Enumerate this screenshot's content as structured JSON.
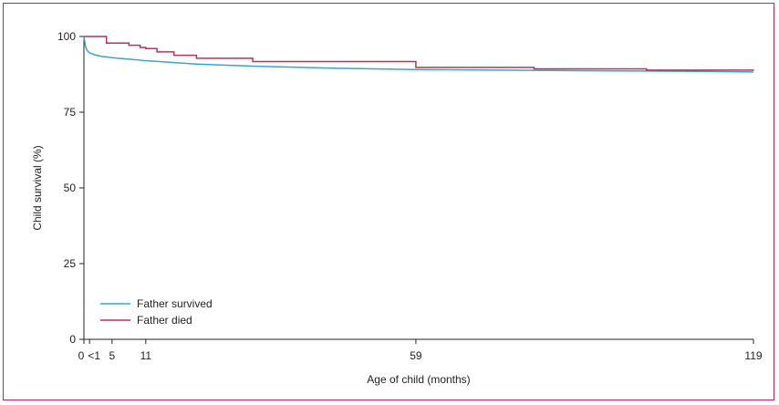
{
  "chart_data": {
    "type": "line",
    "title": "",
    "xlabel": "Age of child (months)",
    "ylabel": "Child survival (%)",
    "xlim": [
      0,
      119
    ],
    "ylim": [
      0,
      100
    ],
    "x_ticks": [
      {
        "value": 0,
        "label": "0"
      },
      {
        "value": 1,
        "label": "<1"
      },
      {
        "value": 5,
        "label": "5"
      },
      {
        "value": 11,
        "label": "11"
      },
      {
        "value": 59,
        "label": "59"
      },
      {
        "value": 119,
        "label": "119"
      }
    ],
    "y_ticks": [
      {
        "value": 0,
        "label": "0"
      },
      {
        "value": 25,
        "label": "25"
      },
      {
        "value": 50,
        "label": "50"
      },
      {
        "value": 75,
        "label": "75"
      },
      {
        "value": 100,
        "label": "100"
      }
    ],
    "grid": false,
    "legend_position": "bottom-left",
    "series": [
      {
        "name": "Father survived",
        "color": "#3aa5c8",
        "step": false,
        "x": [
          0,
          0.3,
          0.6,
          1,
          2,
          3,
          5,
          8,
          11,
          20,
          30,
          45,
          59,
          80,
          100,
          119
        ],
        "y": [
          100,
          96.5,
          95.3,
          94.6,
          93.9,
          93.5,
          93.0,
          92.5,
          92.0,
          90.9,
          90.2,
          89.5,
          89.1,
          88.8,
          88.6,
          88.3
        ]
      },
      {
        "name": "Father died",
        "color": "#b83256",
        "step": true,
        "x": [
          0,
          3,
          4,
          8,
          10,
          11,
          13,
          16,
          20,
          30,
          59,
          80,
          100,
          119
        ],
        "y": [
          100,
          100,
          97.8,
          97.1,
          96.4,
          96.0,
          94.9,
          93.8,
          92.8,
          91.7,
          89.8,
          89.3,
          88.9,
          88.7
        ]
      }
    ]
  }
}
